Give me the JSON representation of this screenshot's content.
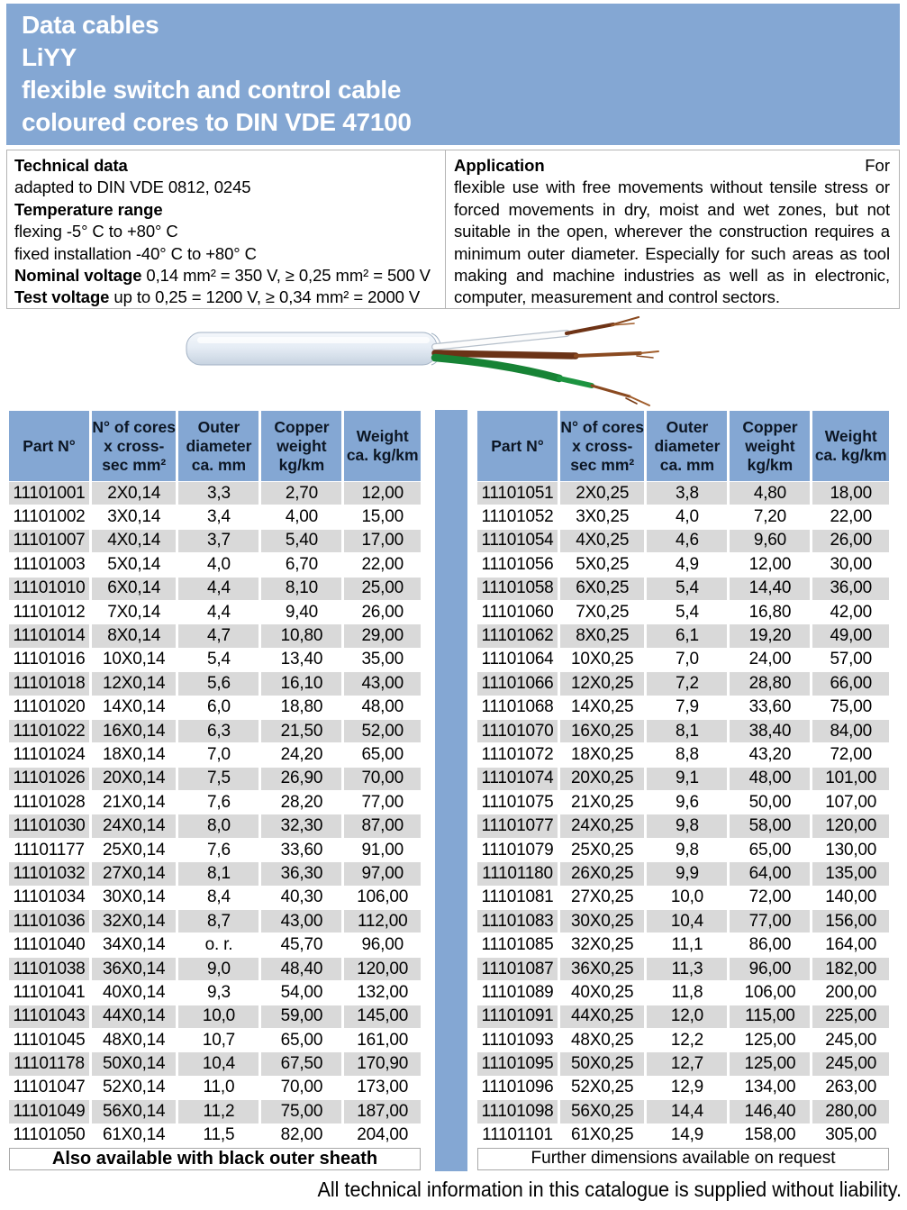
{
  "header": {
    "title_lines": [
      "Data cables",
      "LiYY",
      "flexible switch and control cable",
      "coloured cores to DIN VDE 47100"
    ]
  },
  "technical": {
    "lines": [
      {
        "b": "Technical data",
        "t": ""
      },
      {
        "b": "",
        "t": "adapted to DIN VDE 0812, 0245"
      },
      {
        "b": "Temperature range",
        "t": ""
      },
      {
        "b": "",
        "t": "flexing -5° C to +80° C"
      },
      {
        "b": "",
        "t": "fixed installation -40° C to +80° C"
      },
      {
        "b": "Nominal voltage",
        "t": " 0,14 mm² = 350 V, ≥ 0,25 mm² = 500 V"
      },
      {
        "b": "Test voltage",
        "t": " up to 0,25 = 1200 V, ≥ 0,34 mm² = 2000 V"
      }
    ]
  },
  "application": {
    "heading": "Application",
    "first_line_right": "For",
    "body": "flexible use with free movements without tensile stress or forced movements in dry, moist and wet zones, but not suitable in the open, wherever the construction requires a minimum outer diameter. Especially for such areas as tool making and machine industries as well as in electronic, computer, measurement and control sectors."
  },
  "cable_image": {
    "description": "cable with stripped end",
    "sheath_color": "#e8eef6",
    "wire_colors": [
      "white",
      "brown",
      "green"
    ],
    "copper_color": "#8a4a20"
  },
  "tables": {
    "columns": [
      "Part N°",
      "N° of cores\nx cross-\nsec mm²",
      "Outer\ndiameter\nca. mm",
      "Copper\nweight\nkg/km",
      "Weight\nca. kg/km"
    ],
    "left": {
      "note": "Also available with black outer sheath",
      "rows": [
        [
          "11101001",
          "2X0,14",
          "3,3",
          "2,70",
          "12,00"
        ],
        [
          "11101002",
          "3X0,14",
          "3,4",
          "4,00",
          "15,00"
        ],
        [
          "11101007",
          "4X0,14",
          "3,7",
          "5,40",
          "17,00"
        ],
        [
          "11101003",
          "5X0,14",
          "4,0",
          "6,70",
          "22,00"
        ],
        [
          "11101010",
          "6X0,14",
          "4,4",
          "8,10",
          "25,00"
        ],
        [
          "11101012",
          "7X0,14",
          "4,4",
          "9,40",
          "26,00"
        ],
        [
          "11101014",
          "8X0,14",
          "4,7",
          "10,80",
          "29,00"
        ],
        [
          "11101016",
          "10X0,14",
          "5,4",
          "13,40",
          "35,00"
        ],
        [
          "11101018",
          "12X0,14",
          "5,6",
          "16,10",
          "43,00"
        ],
        [
          "11101020",
          "14X0,14",
          "6,0",
          "18,80",
          "48,00"
        ],
        [
          "11101022",
          "16X0,14",
          "6,3",
          "21,50",
          "52,00"
        ],
        [
          "11101024",
          "18X0,14",
          "7,0",
          "24,20",
          "65,00"
        ],
        [
          "11101026",
          "20X0,14",
          "7,5",
          "26,90",
          "70,00"
        ],
        [
          "11101028",
          "21X0,14",
          "7,6",
          "28,20",
          "77,00"
        ],
        [
          "11101030",
          "24X0,14",
          "8,0",
          "32,30",
          "87,00"
        ],
        [
          "11101177",
          "25X0,14",
          "7,6",
          "33,60",
          "91,00"
        ],
        [
          "11101032",
          "27X0,14",
          "8,1",
          "36,30",
          "97,00"
        ],
        [
          "11101034",
          "30X0,14",
          "8,4",
          "40,30",
          "106,00"
        ],
        [
          "11101036",
          "32X0,14",
          "8,7",
          "43,00",
          "112,00"
        ],
        [
          "11101040",
          "34X0,14",
          "o. r.",
          "45,70",
          "96,00"
        ],
        [
          "11101038",
          "36X0,14",
          "9,0",
          "48,40",
          "120,00"
        ],
        [
          "11101041",
          "40X0,14",
          "9,3",
          "54,00",
          "132,00"
        ],
        [
          "11101043",
          "44X0,14",
          "10,0",
          "59,00",
          "145,00"
        ],
        [
          "11101045",
          "48X0,14",
          "10,7",
          "65,00",
          "161,00"
        ],
        [
          "11101178",
          "50X0,14",
          "10,4",
          "67,50",
          "170,90"
        ],
        [
          "11101047",
          "52X0,14",
          "11,0",
          "70,00",
          "173,00"
        ],
        [
          "11101049",
          "56X0,14",
          "11,2",
          "75,00",
          "187,00"
        ],
        [
          "11101050",
          "61X0,14",
          "11,5",
          "82,00",
          "204,00"
        ]
      ]
    },
    "right": {
      "note": "Further dimensions available on request",
      "rows": [
        [
          "11101051",
          "2X0,25",
          "3,8",
          "4,80",
          "18,00"
        ],
        [
          "11101052",
          "3X0,25",
          "4,0",
          "7,20",
          "22,00"
        ],
        [
          "11101054",
          "4X0,25",
          "4,6",
          "9,60",
          "26,00"
        ],
        [
          "11101056",
          "5X0,25",
          "4,9",
          "12,00",
          "30,00"
        ],
        [
          "11101058",
          "6X0,25",
          "5,4",
          "14,40",
          "36,00"
        ],
        [
          "11101060",
          "7X0,25",
          "5,4",
          "16,80",
          "42,00"
        ],
        [
          "11101062",
          "8X0,25",
          "6,1",
          "19,20",
          "49,00"
        ],
        [
          "11101064",
          "10X0,25",
          "7,0",
          "24,00",
          "57,00"
        ],
        [
          "11101066",
          "12X0,25",
          "7,2",
          "28,80",
          "66,00"
        ],
        [
          "11101068",
          "14X0,25",
          "7,9",
          "33,60",
          "75,00"
        ],
        [
          "11101070",
          "16X0,25",
          "8,1",
          "38,40",
          "84,00"
        ],
        [
          "11101072",
          "18X0,25",
          "8,8",
          "43,20",
          "72,00"
        ],
        [
          "11101074",
          "20X0,25",
          "9,1",
          "48,00",
          "101,00"
        ],
        [
          "11101075",
          "21X0,25",
          "9,6",
          "50,00",
          "107,00"
        ],
        [
          "11101077",
          "24X0,25",
          "9,8",
          "58,00",
          "120,00"
        ],
        [
          "11101079",
          "25X0,25",
          "9,8",
          "65,00",
          "130,00"
        ],
        [
          "11101180",
          "26X0,25",
          "9,9",
          "64,00",
          "135,00"
        ],
        [
          "11101081",
          "27X0,25",
          "10,0",
          "72,00",
          "140,00"
        ],
        [
          "11101083",
          "30X0,25",
          "10,4",
          "77,00",
          "156,00"
        ],
        [
          "11101085",
          "32X0,25",
          "11,1",
          "86,00",
          "164,00"
        ],
        [
          "11101087",
          "36X0,25",
          "11,3",
          "96,00",
          "182,00"
        ],
        [
          "11101089",
          "40X0,25",
          "11,8",
          "106,00",
          "200,00"
        ],
        [
          "11101091",
          "44X0,25",
          "12,0",
          "115,00",
          "225,00"
        ],
        [
          "11101093",
          "48X0,25",
          "12,2",
          "125,00",
          "245,00"
        ],
        [
          "11101095",
          "50X0,25",
          "12,7",
          "125,00",
          "245,00"
        ],
        [
          "11101096",
          "52X0,25",
          "12,9",
          "134,00",
          "263,00"
        ],
        [
          "11101098",
          "56X0,25",
          "14,4",
          "146,40",
          "280,00"
        ],
        [
          "11101101",
          "61X0,25",
          "14,9",
          "158,00",
          "305,00"
        ]
      ]
    }
  },
  "page": {
    "liability": "All technical information in this catalogue is supplied without liability."
  },
  "colors": {
    "band_blue": "#84A7D3",
    "row_gray": "#D9D9D9"
  }
}
